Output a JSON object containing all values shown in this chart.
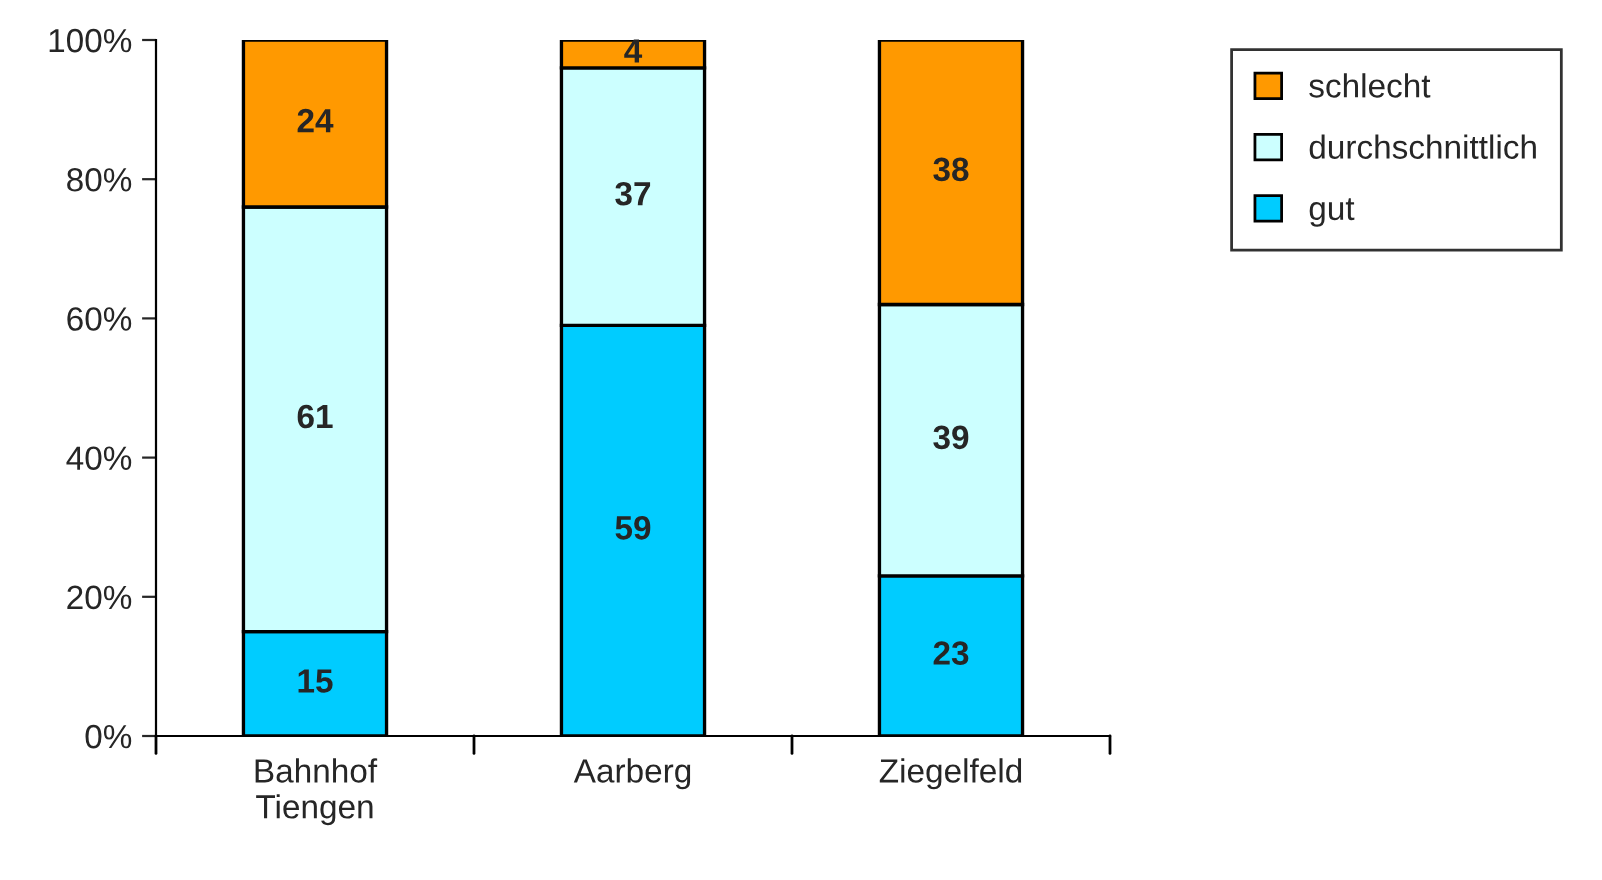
{
  "chart_data": {
    "type": "bar",
    "stacked": true,
    "categories": [
      "Bahnhof\nTiengen",
      "Aarberg",
      "Ziegelfeld"
    ],
    "series": [
      {
        "name": "gut",
        "color": "#00ccff",
        "values": [
          15,
          59,
          23
        ]
      },
      {
        "name": "durchschnittlich",
        "color": "#ccffff",
        "values": [
          61,
          37,
          39
        ]
      },
      {
        "name": "schlecht",
        "color": "#ff9900",
        "values": [
          24,
          4,
          38
        ]
      }
    ],
    "ylim": [
      0,
      100
    ],
    "yticks": [
      {
        "value": 0,
        "label": "0%"
      },
      {
        "value": 20,
        "label": "20%"
      },
      {
        "value": 40,
        "label": "40%"
      },
      {
        "value": 60,
        "label": "60%"
      },
      {
        "value": 80,
        "label": "80%"
      },
      {
        "value": 100,
        "label": "100%"
      }
    ],
    "data_labels": true,
    "legend": "top right",
    "grid": false
  }
}
